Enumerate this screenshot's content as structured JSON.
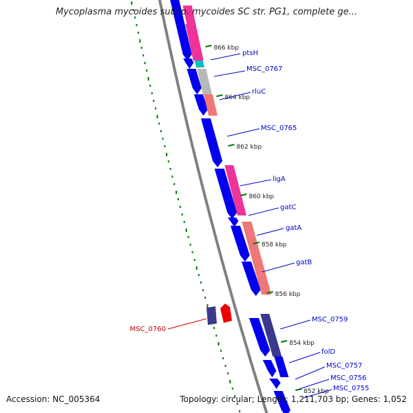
{
  "title": "Mycoplasma mycoides subsp. mycoides SC str. PG1, complete ge...",
  "footer": {
    "accession": "Accession: NC_005364",
    "summary": "Topology: circular; Length: 1,211,703 bp; Genes: 1,052"
  },
  "colors": {
    "backbone": "#808080",
    "forward_gene": "#0000ee",
    "dark_gene": "#3a3a8c",
    "pink_gene": "#ee3399",
    "salmon_gene": "#ee7777",
    "gray_gene": "#b8b8b8",
    "cyan_gene": "#00c0c0",
    "highlight_gene": "#ee0000",
    "tick": "#007700",
    "gene_label": "#0000cc",
    "highlight_label": "#cc0000",
    "position_label": "#222222"
  },
  "position_labels": [
    "866 kbp",
    "864 kbp",
    "862 kbp",
    "860 kbp",
    "858 kbp",
    "856 kbp",
    "854 kbp",
    "852 kbp"
  ],
  "gene_labels": [
    {
      "name": "ptsH",
      "highlight": false
    },
    {
      "name": "MSC_0767",
      "highlight": false
    },
    {
      "name": "rluC",
      "highlight": false
    },
    {
      "name": "MSC_0765",
      "highlight": false
    },
    {
      "name": "ligA",
      "highlight": false
    },
    {
      "name": "gatC",
      "highlight": false
    },
    {
      "name": "gatA",
      "highlight": false
    },
    {
      "name": "gatB",
      "highlight": false
    },
    {
      "name": "MSC_0759",
      "highlight": false
    },
    {
      "name": "MSC_0760",
      "highlight": true
    },
    {
      "name": "folD",
      "highlight": false
    },
    {
      "name": "MSC_0757",
      "highlight": false
    },
    {
      "name": "MSC_0756",
      "highlight": false
    },
    {
      "name": "MSC_0755",
      "highlight": false
    }
  ]
}
